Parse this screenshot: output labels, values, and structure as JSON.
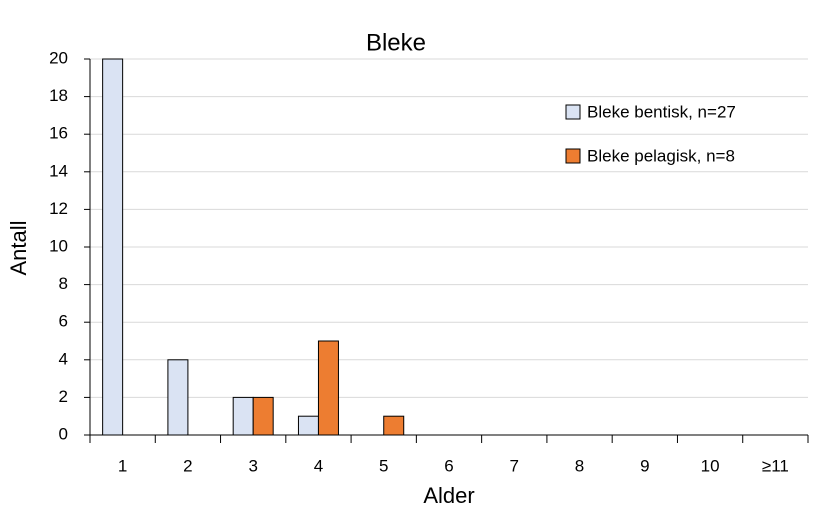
{
  "chart_data": {
    "type": "bar",
    "title": "Bleke",
    "x_label": "Alder",
    "y_label": "Antall",
    "categories": [
      "1",
      "2",
      "3",
      "4",
      "5",
      "6",
      "7",
      "8",
      "9",
      "10",
      "≥11"
    ],
    "series": [
      {
        "name": "Bleke bentisk, n=27",
        "color": "#dae3f3",
        "values": [
          20,
          4,
          2,
          1,
          0,
          0,
          0,
          0,
          0,
          0,
          0
        ]
      },
      {
        "name": "Bleke pelagisk, n=8",
        "color": "#ed7d31",
        "values": [
          0,
          0,
          2,
          5,
          1,
          0,
          0,
          0,
          0,
          0,
          0
        ]
      }
    ],
    "ylim": [
      0,
      20
    ],
    "yticks": [
      0,
      2,
      4,
      6,
      8,
      10,
      12,
      14,
      16,
      18,
      20
    ],
    "grid": true,
    "legend": "upper right"
  }
}
